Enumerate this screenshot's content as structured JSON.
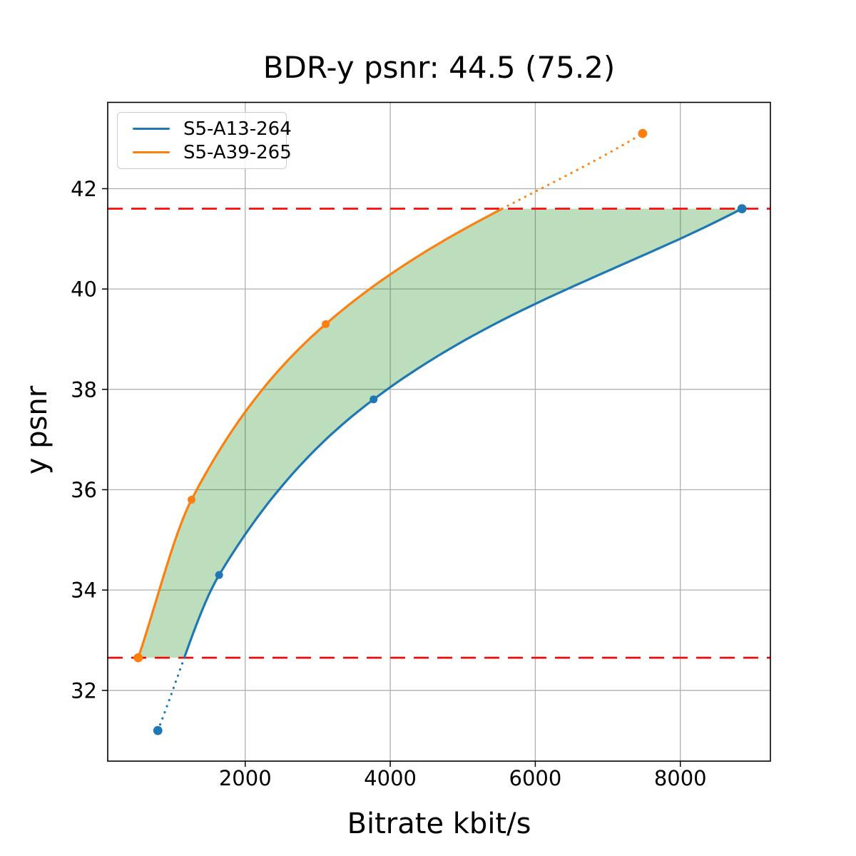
{
  "page": {
    "background": "#ffffff"
  },
  "chart_data": {
    "type": "line",
    "title": "BDR-y psnr: 44.5 (75.2)",
    "xlabel": "Bitrate kbit/s",
    "ylabel": "y psnr",
    "x_ticks": [
      2000,
      4000,
      6000,
      8000
    ],
    "y_ticks": [
      32,
      34,
      36,
      38,
      40,
      42
    ],
    "xlim": [
      104,
      9242
    ],
    "ylim": [
      30.59,
      43.72
    ],
    "grid": true,
    "grid_color": "#b0b0b0",
    "legend_position": "upper left",
    "series": [
      {
        "name": "S5-A13-264",
        "color": "#1f77b4",
        "points": [
          [
            795,
            31.2
          ],
          [
            1640,
            34.3
          ],
          [
            3770,
            37.8
          ],
          [
            8850,
            41.6
          ]
        ],
        "dotted_segment": "below_overlap"
      },
      {
        "name": "S5-A39-265",
        "color": "#ff7f0e",
        "points": [
          [
            525,
            32.65
          ],
          [
            1260,
            35.8
          ],
          [
            3110,
            39.3
          ],
          [
            7480,
            43.1
          ]
        ],
        "dotted_segment": "above_overlap"
      }
    ],
    "overlap_lines": {
      "y_values": [
        32.65,
        41.6
      ],
      "color": "#ff0000",
      "style": "dashed"
    },
    "fill_between": {
      "color": "rgba(0,128,0,0.26)",
      "y_range": [
        32.65,
        41.6
      ]
    }
  }
}
